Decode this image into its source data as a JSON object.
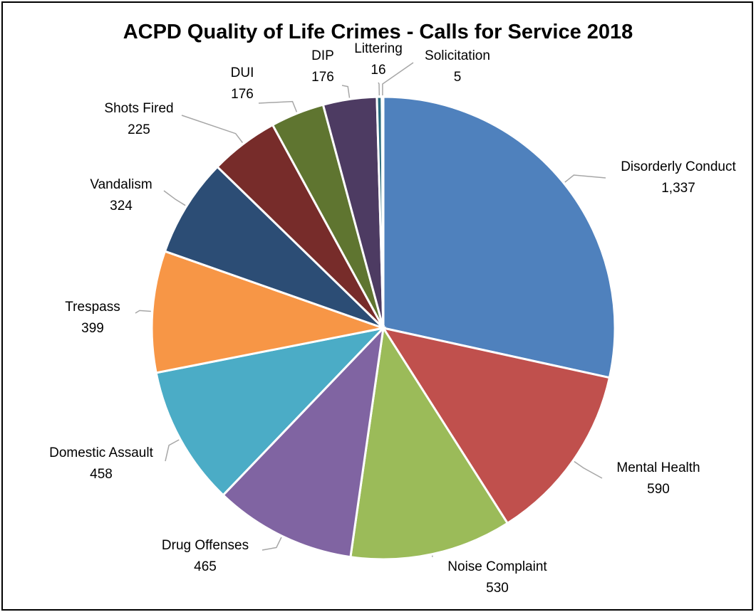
{
  "chart_data": {
    "type": "pie",
    "title": "ACPD Quality of Life Crimes - Calls for Service 2018",
    "slices": [
      {
        "label": "Disorderly Conduct",
        "value": 1337,
        "display": "1,337",
        "color": "#4F81BD"
      },
      {
        "label": "Mental Health",
        "value": 590,
        "display": "590",
        "color": "#C0504D"
      },
      {
        "label": "Noise Complaint",
        "value": 530,
        "display": "530",
        "color": "#9BBB59"
      },
      {
        "label": "Drug Offenses",
        "value": 465,
        "display": "465",
        "color": "#8064A2"
      },
      {
        "label": "Domestic Assault",
        "value": 458,
        "display": "458",
        "color": "#4BACC6"
      },
      {
        "label": "Trespass",
        "value": 399,
        "display": "399",
        "color": "#F79646"
      },
      {
        "label": "Vandalism",
        "value": 324,
        "display": "324",
        "color": "#2C4D75"
      },
      {
        "label": "Shots Fired",
        "value": 225,
        "display": "225",
        "color": "#772C2A"
      },
      {
        "label": "DUI",
        "value": 176,
        "display": "176",
        "color": "#5F7530"
      },
      {
        "label": "DIP",
        "value": 176,
        "display": "176",
        "color": "#4D3B62"
      },
      {
        "label": "Littering",
        "value": 16,
        "display": "16",
        "color": "#276A7C"
      },
      {
        "label": "Solicitation",
        "value": 5,
        "display": "5",
        "color": "#B65708"
      }
    ],
    "legend": "none",
    "data_labels": "outside with leader lines"
  }
}
